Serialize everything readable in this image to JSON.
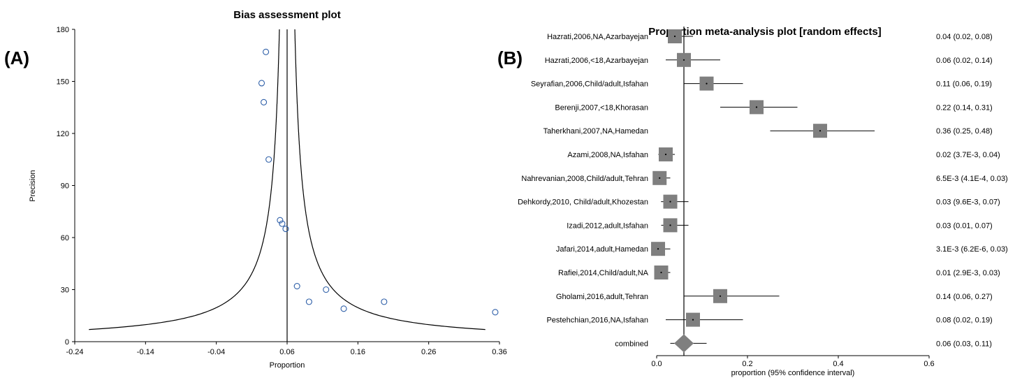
{
  "panel_a_letter": "(A)",
  "panel_b_letter": "(B)",
  "chart_data": [
    {
      "type": "scatter",
      "title": "Bias assessment plot",
      "xlabel": "Proportion",
      "ylabel": "Precision",
      "xlim": [
        -0.24,
        0.36
      ],
      "ylim": [
        0,
        180
      ],
      "x_ticks": [
        "-0.24",
        "-0.14",
        "-0.04",
        "0.06",
        "0.16",
        "0.26",
        "0.36"
      ],
      "y_ticks": [
        "0",
        "30",
        "60",
        "90",
        "120",
        "150",
        "180"
      ],
      "pooled_estimate": 0.06,
      "funnel_curve": "pseudo 95% confidence limits around pooled estimate",
      "points": [
        {
          "x": 0.03,
          "y": 167
        },
        {
          "x": 0.024,
          "y": 149
        },
        {
          "x": 0.027,
          "y": 138
        },
        {
          "x": 0.034,
          "y": 105
        },
        {
          "x": 0.05,
          "y": 70
        },
        {
          "x": 0.053,
          "y": 68
        },
        {
          "x": 0.058,
          "y": 65
        },
        {
          "x": 0.074,
          "y": 32
        },
        {
          "x": 0.091,
          "y": 23
        },
        {
          "x": 0.115,
          "y": 30
        },
        {
          "x": 0.14,
          "y": 19
        },
        {
          "x": 0.197,
          "y": 23
        },
        {
          "x": 0.354,
          "y": 17
        }
      ],
      "marker_color": "#2e5fa8"
    },
    {
      "type": "forest",
      "title": "Proportion meta-analysis plot [random effects]",
      "xlabel": "proportion (95% confidence interval)",
      "xlim": [
        0.0,
        0.6
      ],
      "x_ticks": [
        "0.0",
        "0.2",
        "0.4",
        "0.6"
      ],
      "pooled_line": 0.06,
      "studies": [
        {
          "label": "Hazrati,2006,NA,Azarbayejan",
          "est": 0.04,
          "lo": 0.02,
          "hi": 0.08,
          "ci_text": "0.04 (0.02, 0.08)"
        },
        {
          "label": "Hazrati,2006,<18,Azarbayejan",
          "est": 0.06,
          "lo": 0.02,
          "hi": 0.14,
          "ci_text": "0.06 (0.02, 0.14)"
        },
        {
          "label": "Seyrafian,2006,Child/adult,Isfahan",
          "est": 0.11,
          "lo": 0.06,
          "hi": 0.19,
          "ci_text": "0.11 (0.06, 0.19)"
        },
        {
          "label": "Berenji,2007,<18,Khorasan",
          "est": 0.22,
          "lo": 0.14,
          "hi": 0.31,
          "ci_text": "0.22 (0.14, 0.31)"
        },
        {
          "label": "Taherkhani,2007,NA,Hamedan",
          "est": 0.36,
          "lo": 0.25,
          "hi": 0.48,
          "ci_text": "0.36 (0.25, 0.48)"
        },
        {
          "label": "Azami,2008,NA,Isfahan",
          "est": 0.02,
          "lo": 0.0037,
          "hi": 0.04,
          "ci_text": "0.02 (3.7E-3, 0.04)"
        },
        {
          "label": "Nahrevanian,2008,Child/adult,Tehran",
          "est": 0.0065,
          "lo": 0.00041,
          "hi": 0.03,
          "ci_text": "6.5E-3 (4.1E-4, 0.03)"
        },
        {
          "label": "Dehkordy,2010, Child/adult,Khozestan",
          "est": 0.03,
          "lo": 0.0096,
          "hi": 0.07,
          "ci_text": "0.03 (9.6E-3, 0.07)"
        },
        {
          "label": "Izadi,2012,adult,Isfahan",
          "est": 0.03,
          "lo": 0.01,
          "hi": 0.07,
          "ci_text": "0.03 (0.01, 0.07)"
        },
        {
          "label": "Jafari,2014,adult,Hamedan",
          "est": 0.0031,
          "lo": 6.2e-06,
          "hi": 0.03,
          "ci_text": "3.1E-3 (6.2E-6, 0.03)"
        },
        {
          "label": "Rafiei,2014,Child/adult,NA",
          "est": 0.01,
          "lo": 0.0029,
          "hi": 0.03,
          "ci_text": "0.01 (2.9E-3, 0.03)"
        },
        {
          "label": "Gholami,2016,adult,Tehran",
          "est": 0.14,
          "lo": 0.06,
          "hi": 0.27,
          "ci_text": "0.14 (0.06, 0.27)"
        },
        {
          "label": "Pestehchian,2016,NA,Isfahan",
          "est": 0.08,
          "lo": 0.02,
          "hi": 0.19,
          "ci_text": "0.08 (0.02, 0.19)"
        }
      ],
      "combined": {
        "label": "combined",
        "est": 0.06,
        "lo": 0.03,
        "hi": 0.11,
        "ci_text": "0.06 (0.03, 0.11)"
      },
      "box_color": "#7f7f7f"
    }
  ]
}
